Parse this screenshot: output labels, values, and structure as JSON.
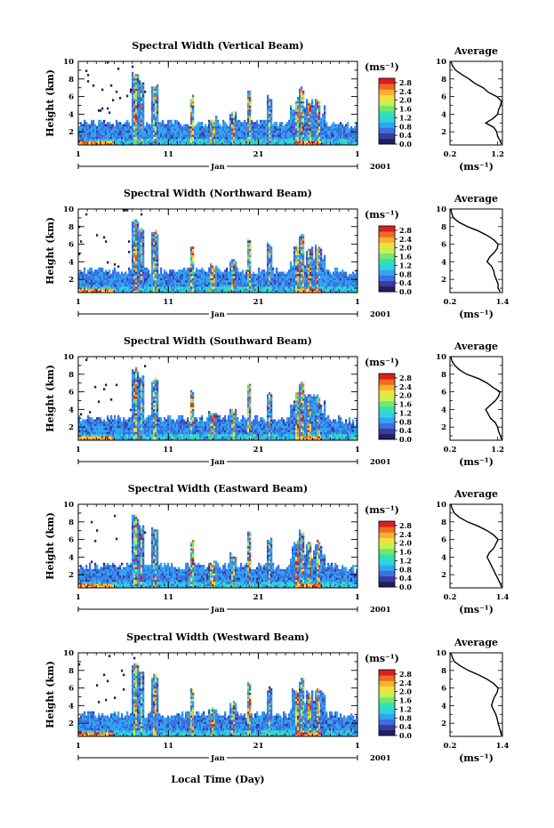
{
  "figure": {
    "xlabel": "Local Time (Day)",
    "month_label": "Jan",
    "year_label": "2001",
    "ylabel": "Height (km)",
    "unit_label": "(ms⁻¹)",
    "avg_title": "Average"
  },
  "colors": {
    "scale": [
      "#202060",
      "#3a3aa0",
      "#3c6fe0",
      "#2fa6f0",
      "#2fd2e6",
      "#35e0b0",
      "#70e870",
      "#c8f050",
      "#f0e040",
      "#f8b030",
      "#f06a20",
      "#d82020"
    ]
  },
  "chart_data": [
    {
      "type": "heatmap",
      "title": "Spectral Width (Vertical Beam)",
      "xlabel": "Local Time (Day)",
      "ylabel": "Height (km)",
      "xticks": [
        "1",
        "11",
        "21",
        "1"
      ],
      "yticks": [
        "2",
        "4",
        "6",
        "8",
        "10"
      ],
      "xlim": [
        1,
        32
      ],
      "ylim": [
        0.5,
        10
      ],
      "colorbar": {
        "ticks": [
          "0.0",
          "0.4",
          "0.8",
          "1.2",
          "1.6",
          "2.0",
          "2.4",
          "2.8"
        ],
        "range": [
          0,
          3.0
        ]
      },
      "average_profile": {
        "xticks": [
          "0.2",
          "1.2"
        ],
        "xlim": [
          0.2,
          1.3
        ],
        "heights": [
          0.6,
          1.0,
          1.5,
          2.0,
          2.5,
          3.0,
          3.5,
          4.0,
          4.5,
          5.0,
          5.5,
          6.0,
          6.5,
          7.0,
          7.5,
          8.0,
          8.5,
          9.0,
          9.5,
          10.0
        ],
        "values": [
          1.28,
          1.25,
          1.2,
          1.18,
          1.12,
          0.95,
          1.1,
          1.2,
          1.22,
          1.26,
          1.28,
          1.18,
          1.0,
          0.9,
          0.72,
          0.6,
          0.45,
          0.32,
          0.25,
          0.22
        ]
      }
    },
    {
      "type": "heatmap",
      "title": "Spectral Width (Northward Beam)",
      "xlabel": "Local Time (Day)",
      "ylabel": "Height (km)",
      "xticks": [
        "1",
        "11",
        "21",
        "1"
      ],
      "yticks": [
        "2",
        "4",
        "6",
        "8",
        "10"
      ],
      "xlim": [
        1,
        32
      ],
      "ylim": [
        0.5,
        10
      ],
      "colorbar": {
        "ticks": [
          "0.0",
          "0.4",
          "0.8",
          "1.2",
          "1.6",
          "2.0",
          "2.4",
          "2.8"
        ],
        "range": [
          0,
          3.0
        ]
      },
      "average_profile": {
        "xticks": [
          "0.2",
          "1.4"
        ],
        "xlim": [
          0.2,
          1.4
        ],
        "heights": [
          0.6,
          1.0,
          1.5,
          2.0,
          2.5,
          3.0,
          3.5,
          4.0,
          4.5,
          5.0,
          5.5,
          6.0,
          6.5,
          7.0,
          7.5,
          8.0,
          8.5,
          9.0,
          9.5,
          10.0
        ],
        "values": [
          1.35,
          1.3,
          1.3,
          1.26,
          1.22,
          1.2,
          1.15,
          1.05,
          1.1,
          1.2,
          1.28,
          1.3,
          1.2,
          1.05,
          0.85,
          0.6,
          0.4,
          0.28,
          0.24,
          0.22
        ]
      }
    },
    {
      "type": "heatmap",
      "title": "Spectral Width (Southward Beam)",
      "xlabel": "Local Time (Day)",
      "ylabel": "Height (km)",
      "xticks": [
        "1",
        "11",
        "21",
        "1"
      ],
      "yticks": [
        "2",
        "4",
        "6",
        "8",
        "10"
      ],
      "xlim": [
        1,
        32
      ],
      "ylim": [
        0.5,
        10
      ],
      "colorbar": {
        "ticks": [
          "0.0",
          "0.4",
          "0.8",
          "1.2",
          "1.6",
          "2.0",
          "2.4",
          "2.8"
        ],
        "range": [
          0,
          3.0
        ]
      },
      "average_profile": {
        "xticks": [
          "0.2",
          "1.2"
        ],
        "xlim": [
          0.2,
          1.3
        ],
        "heights": [
          0.6,
          1.0,
          1.5,
          2.0,
          2.5,
          3.0,
          3.5,
          4.0,
          4.5,
          5.0,
          5.5,
          6.0,
          6.5,
          7.0,
          7.5,
          8.0,
          8.5,
          9.0,
          9.5,
          10.0
        ],
        "values": [
          1.28,
          1.26,
          1.22,
          1.2,
          1.15,
          1.05,
          1.0,
          0.95,
          1.05,
          1.15,
          1.22,
          1.25,
          1.1,
          0.98,
          0.8,
          0.55,
          0.4,
          0.3,
          0.24,
          0.22
        ]
      }
    },
    {
      "type": "heatmap",
      "title": "Spectral Width (Eastward Beam)",
      "xlabel": "Local Time (Day)",
      "ylabel": "Height (km)",
      "xticks": [
        "1",
        "11",
        "21",
        "1"
      ],
      "yticks": [
        "2",
        "4",
        "6",
        "8",
        "10"
      ],
      "xlim": [
        1,
        32
      ],
      "ylim": [
        0.5,
        10
      ],
      "colorbar": {
        "ticks": [
          "0.0",
          "0.4",
          "0.8",
          "1.2",
          "1.6",
          "2.0",
          "2.4",
          "2.8"
        ],
        "range": [
          0,
          3.0
        ]
      },
      "average_profile": {
        "xticks": [
          "0.2",
          "1.4"
        ],
        "xlim": [
          0.2,
          1.4
        ],
        "heights": [
          0.6,
          1.0,
          1.5,
          2.0,
          2.5,
          3.0,
          3.5,
          4.0,
          4.5,
          5.0,
          5.5,
          6.0,
          6.5,
          7.0,
          7.5,
          8.0,
          8.5,
          9.0,
          9.5,
          10.0
        ],
        "values": [
          1.38,
          1.35,
          1.3,
          1.25,
          1.2,
          1.15,
          1.1,
          1.05,
          1.1,
          1.2,
          1.25,
          1.3,
          1.2,
          1.05,
          0.85,
          0.6,
          0.42,
          0.3,
          0.25,
          0.22
        ]
      }
    },
    {
      "type": "heatmap",
      "title": "Spectral Width (Westward Beam)",
      "xlabel": "Local Time (Day)",
      "ylabel": "Height (km)",
      "xticks": [
        "1",
        "11",
        "21",
        "1"
      ],
      "yticks": [
        "2",
        "4",
        "6",
        "8",
        "10"
      ],
      "xlim": [
        1,
        32
      ],
      "ylim": [
        0.5,
        10
      ],
      "colorbar": {
        "ticks": [
          "0.0",
          "0.4",
          "0.8",
          "1.2",
          "1.6",
          "2.0",
          "2.4",
          "2.8"
        ],
        "range": [
          0,
          3.0
        ]
      },
      "average_profile": {
        "xticks": [
          "0.2",
          "1.4"
        ],
        "xlim": [
          0.2,
          1.4
        ],
        "heights": [
          0.6,
          1.0,
          1.5,
          2.0,
          2.5,
          3.0,
          3.5,
          4.0,
          4.5,
          5.0,
          5.5,
          6.0,
          6.5,
          7.0,
          7.5,
          8.0,
          8.5,
          9.0,
          9.5,
          10.0
        ],
        "values": [
          1.38,
          1.36,
          1.33,
          1.3,
          1.28,
          1.25,
          1.2,
          1.15,
          1.18,
          1.22,
          1.28,
          1.3,
          1.2,
          1.05,
          0.85,
          0.62,
          0.44,
          0.3,
          0.25,
          0.22
        ]
      }
    }
  ]
}
